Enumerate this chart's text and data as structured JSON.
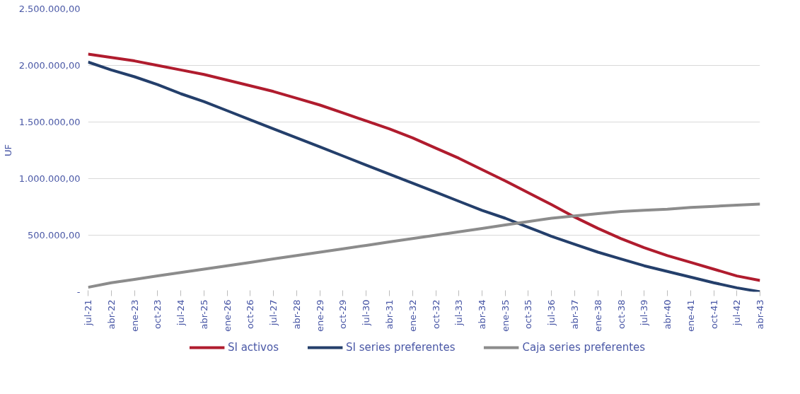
{
  "chart_data": {
    "type": "line",
    "ylabel": "UF",
    "x": [
      "2021-07",
      "2022-04",
      "2023-01",
      "2023-10",
      "2024-07",
      "2025-04",
      "2026-01",
      "2026-10",
      "2027-07",
      "2028-04",
      "2029-01",
      "2029-10",
      "2030-07",
      "2031-04",
      "2032-01",
      "2032-10",
      "2033-07",
      "2034-04",
      "2035-01",
      "2035-10",
      "2036-07",
      "2037-04",
      "2038-01",
      "2038-10",
      "2039-07",
      "2040-04",
      "2041-01",
      "2041-10",
      "2042-07",
      "2043-04"
    ],
    "series": [
      {
        "name": "SI activos",
        "color": "#b01c2e",
        "values": [
          2100000,
          2070000,
          2040000,
          2000000,
          1960000,
          1920000,
          1870000,
          1820000,
          1770000,
          1710000,
          1650000,
          1580000,
          1510000,
          1440000,
          1360000,
          1270000,
          1180000,
          1080000,
          980000,
          875000,
          770000,
          660000,
          560000,
          470000,
          390000,
          320000,
          260000,
          200000,
          140000,
          100000
        ]
      },
      {
        "name": "SI series preferentes",
        "color": "#243f6b",
        "values": [
          2030000,
          1960000,
          1900000,
          1830000,
          1750000,
          1680000,
          1600000,
          1520000,
          1440000,
          1360000,
          1280000,
          1200000,
          1120000,
          1040000,
          960000,
          880000,
          800000,
          720000,
          650000,
          570000,
          490000,
          420000,
          350000,
          290000,
          230000,
          180000,
          130000,
          80000,
          35000,
          0
        ]
      },
      {
        "name": "Caja series preferentes",
        "color": "#8c8c8c",
        "values": [
          40000,
          80000,
          110000,
          140000,
          170000,
          200000,
          230000,
          260000,
          290000,
          320000,
          350000,
          380000,
          410000,
          440000,
          470000,
          500000,
          530000,
          560000,
          590000,
          620000,
          650000,
          670000,
          690000,
          710000,
          720000,
          730000,
          745000,
          755000,
          765000,
          775000
        ]
      }
    ],
    "xlim": [
      "2021-07",
      "2043-04"
    ],
    "xticks": [
      {
        "value": "2021-07",
        "label": "jul-21"
      },
      {
        "value": "2022-04",
        "label": "abr-22"
      },
      {
        "value": "2023-01",
        "label": "ene-23"
      },
      {
        "value": "2023-10",
        "label": "oct-23"
      },
      {
        "value": "2024-07",
        "label": "jul-24"
      },
      {
        "value": "2025-04",
        "label": "abr-25"
      },
      {
        "value": "2026-01",
        "label": "ene-26"
      },
      {
        "value": "2026-10",
        "label": "oct-26"
      },
      {
        "value": "2027-07",
        "label": "jul-27"
      },
      {
        "value": "2028-04",
        "label": "abr-28"
      },
      {
        "value": "2029-01",
        "label": "ene-29"
      },
      {
        "value": "2029-10",
        "label": "oct-29"
      },
      {
        "value": "2030-07",
        "label": "jul-30"
      },
      {
        "value": "2031-04",
        "label": "abr-31"
      },
      {
        "value": "2032-01",
        "label": "ene-32"
      },
      {
        "value": "2032-10",
        "label": "oct-32"
      },
      {
        "value": "2033-07",
        "label": "jul-33"
      },
      {
        "value": "2034-04",
        "label": "abr-34"
      },
      {
        "value": "2035-01",
        "label": "ene-35"
      },
      {
        "value": "2035-10",
        "label": "oct-35"
      },
      {
        "value": "2036-07",
        "label": "jul-36"
      },
      {
        "value": "2037-04",
        "label": "abr-37"
      },
      {
        "value": "2038-01",
        "label": "ene-38"
      },
      {
        "value": "2038-10",
        "label": "oct-38"
      },
      {
        "value": "2039-07",
        "label": "jul-39"
      },
      {
        "value": "2040-04",
        "label": "abr-40"
      },
      {
        "value": "2041-01",
        "label": "ene-41"
      },
      {
        "value": "2041-10",
        "label": "oct-41"
      },
      {
        "value": "2042-07",
        "label": "jul-42"
      },
      {
        "value": "2043-04",
        "label": "abr-43"
      }
    ],
    "ylim": [
      0,
      2500000
    ],
    "yticks": [
      {
        "value": 0,
        "label": "-"
      },
      {
        "value": 500000,
        "label": "500.000,00"
      },
      {
        "value": 1000000,
        "label": "1.000.000,00"
      },
      {
        "value": 1500000,
        "label": "1.500.000,00"
      },
      {
        "value": 2000000,
        "label": "2.000.000,00"
      },
      {
        "value": 2500000,
        "label": "2.500.000,00"
      }
    ],
    "grid": "y",
    "legend": "bottom",
    "marker": "none",
    "line_style": "solid"
  }
}
